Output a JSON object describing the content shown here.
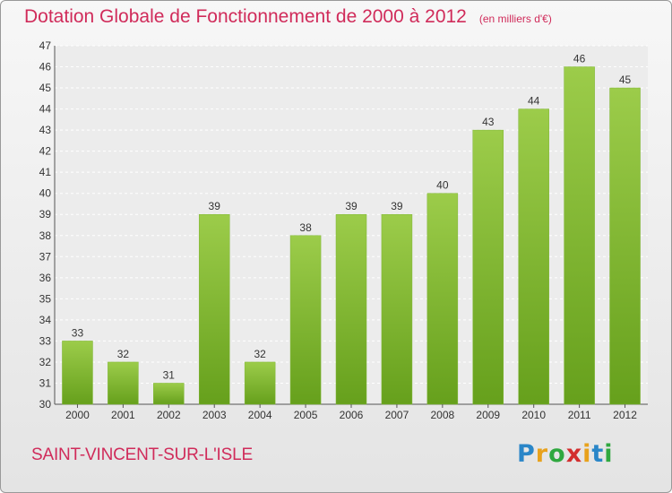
{
  "header": {
    "title": "Dotation Globale de Fonctionnement de 2000 à 2012",
    "unit": "(en milliers d'€)"
  },
  "footer": {
    "commune": "SAINT-VINCENT-SUR-L'ISLE",
    "logo_letters": [
      "P",
      "r",
      "o",
      "x",
      "i",
      "t",
      "i"
    ]
  },
  "colors": {
    "bar_light": "#9ccc4a",
    "bar_dark": "#66a01c",
    "title": "#d02b5a"
  },
  "chart_data": {
    "type": "bar",
    "title": "Dotation Globale de Fonctionnement de 2000 à 2012",
    "subtitle": "(en milliers d'€)",
    "categories": [
      "2000",
      "2001",
      "2002",
      "2003",
      "2004",
      "2005",
      "2006",
      "2007",
      "2008",
      "2009",
      "2010",
      "2011",
      "2012"
    ],
    "values": [
      33,
      32,
      31,
      39,
      32,
      38,
      39,
      39,
      40,
      43,
      44,
      46,
      45
    ],
    "xlabel": "",
    "ylabel": "",
    "ylim": [
      30,
      47
    ],
    "yticks": [
      30,
      31,
      32,
      33,
      34,
      35,
      36,
      37,
      38,
      39,
      40,
      41,
      42,
      43,
      44,
      45,
      46,
      47
    ],
    "grid": true,
    "data_labels": true
  }
}
